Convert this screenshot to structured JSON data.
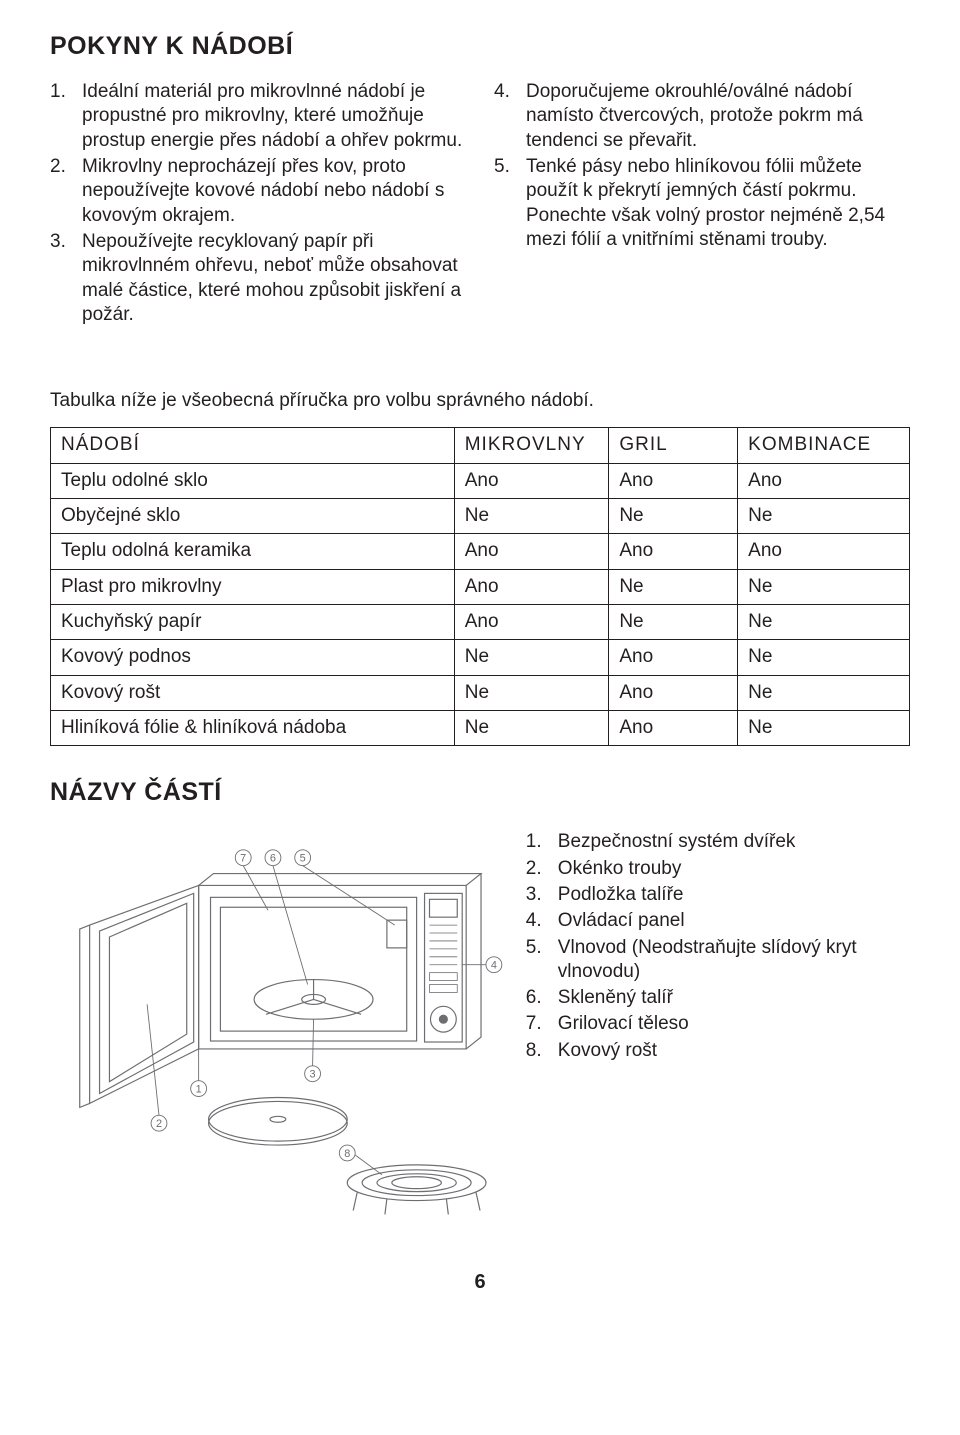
{
  "title_section1": "POKYNY K NÁDOBÍ",
  "instructions_left": [
    "Ideální materiál pro mikrovlnné nádobí je propustné pro mikrovlny, které umožňuje prostup energie přes nádobí a ohřev pokrmu.",
    "Mikrovlny neprocházejí přes kov, proto nepoužívejte kovové nádobí nebo nádobí s kovovým okrajem.",
    "Nepoužívejte recyklovaný papír při mikrovlnném ohřevu, neboť může obsahovat malé částice, které mohou způsobit jiskření a požár."
  ],
  "instructions_right": [
    "Doporučujeme okrouhlé/oválné nádobí namísto čtvercových, protože pokrm má tendenci se převařit.",
    "Tenké pásy nebo hliníkovou fólii můžete použít k překrytí jemných částí  pokrmu. Ponechte však volný prostor nejméně 2,54 mezi fólií a vnitřními stěnami trouby."
  ],
  "right_start_num": 4,
  "table_intro": "Tabulka níže je všeobecná příručka pro volbu správného nádobí.",
  "table_headers": [
    "NÁDOBÍ",
    "MIKROVLNY",
    "GRIL",
    "KOMBINACE"
  ],
  "table_rows": [
    [
      "Teplu odolné sklo",
      "Ano",
      "Ano",
      "Ano"
    ],
    [
      "Obyčejné sklo",
      "Ne",
      "Ne",
      "Ne"
    ],
    [
      "Teplu odolná keramika",
      "Ano",
      "Ano",
      "Ano"
    ],
    [
      "Plast pro mikrovlny",
      "Ano",
      "Ne",
      "Ne"
    ],
    [
      "Kuchyňský papír",
      "Ano",
      "Ne",
      "Ne"
    ],
    [
      "Kovový podnos",
      "Ne",
      "Ano",
      "Ne"
    ],
    [
      "Kovový rošt",
      "Ne",
      "Ano",
      "Ne"
    ],
    [
      "Hliníková fólie & hliníková nádoba",
      "Ne",
      "Ano",
      "Ne"
    ]
  ],
  "title_section2": "NÁZVY ČÁSTÍ",
  "parts_list": [
    "Bezpečnostní systém dvířek",
    "Okénko trouby",
    "Podložka talíře",
    "Ovládací panel",
    "Vlnovod (Neodstraňujte slídový kryt vlnovodu)",
    "Skleněný talíř",
    "Grilovací těleso",
    "Kovový rošt"
  ],
  "page_number": "6",
  "colors": {
    "text": "#231f20",
    "background": "#ffffff",
    "border": "#231f20",
    "diagram_stroke": "#6d6e71"
  }
}
